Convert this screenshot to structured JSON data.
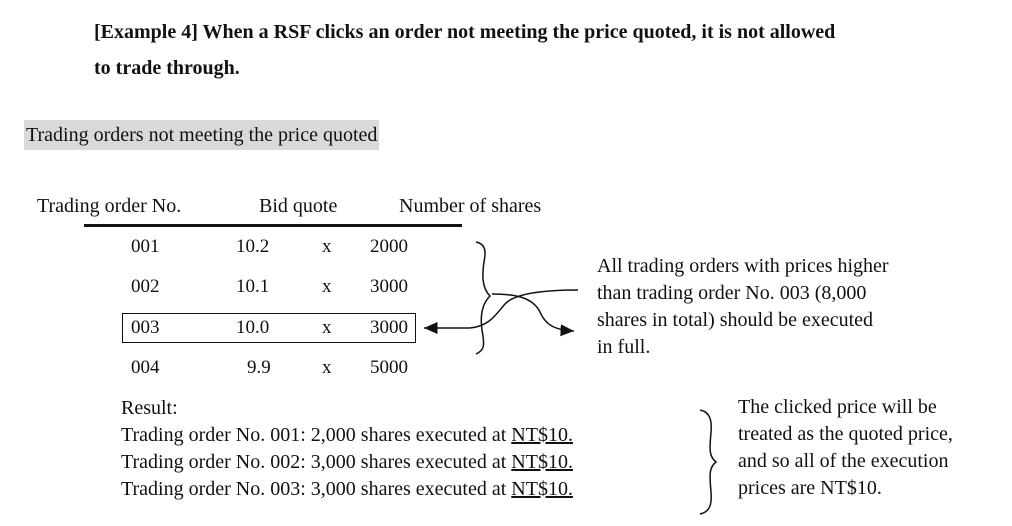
{
  "heading": {
    "line1": "[Example 4] When a RSF clicks an order not meeting the price quoted, it is not allowed",
    "line2": "to trade through."
  },
  "subheading": "Trading orders not meeting the price quoted",
  "table": {
    "headers": [
      "Trading order No.",
      "Bid quote",
      "Number of shares"
    ],
    "rows": [
      {
        "no": "001",
        "bid": "10.2",
        "x": "x",
        "shares": "2000"
      },
      {
        "no": "002",
        "bid": "10.1",
        "x": "x",
        "shares": "3000"
      },
      {
        "no": "003",
        "bid": "10.0",
        "x": "x",
        "shares": "3000"
      },
      {
        "no": "004",
        "bid": "9.9",
        "x": "x",
        "shares": "5000"
      }
    ]
  },
  "note1": [
    "All trading orders with prices higher",
    "than trading order No. 003 (8,000",
    "shares in total) should be executed",
    "in full."
  ],
  "result": {
    "label": "Result:",
    "lines": [
      {
        "text": "Trading order No. 001: 2,000 shares executed at ",
        "price": "NT$10."
      },
      {
        "text": "Trading order No. 002: 3,000 shares executed at ",
        "price": "NT$10."
      },
      {
        "text": "Trading order No. 003: 3,000 shares executed at ",
        "price": "NT$10."
      }
    ]
  },
  "note2": [
    "The clicked price will be",
    "treated as the quoted price,",
    "and so all of the execution",
    "prices are NT$10."
  ]
}
